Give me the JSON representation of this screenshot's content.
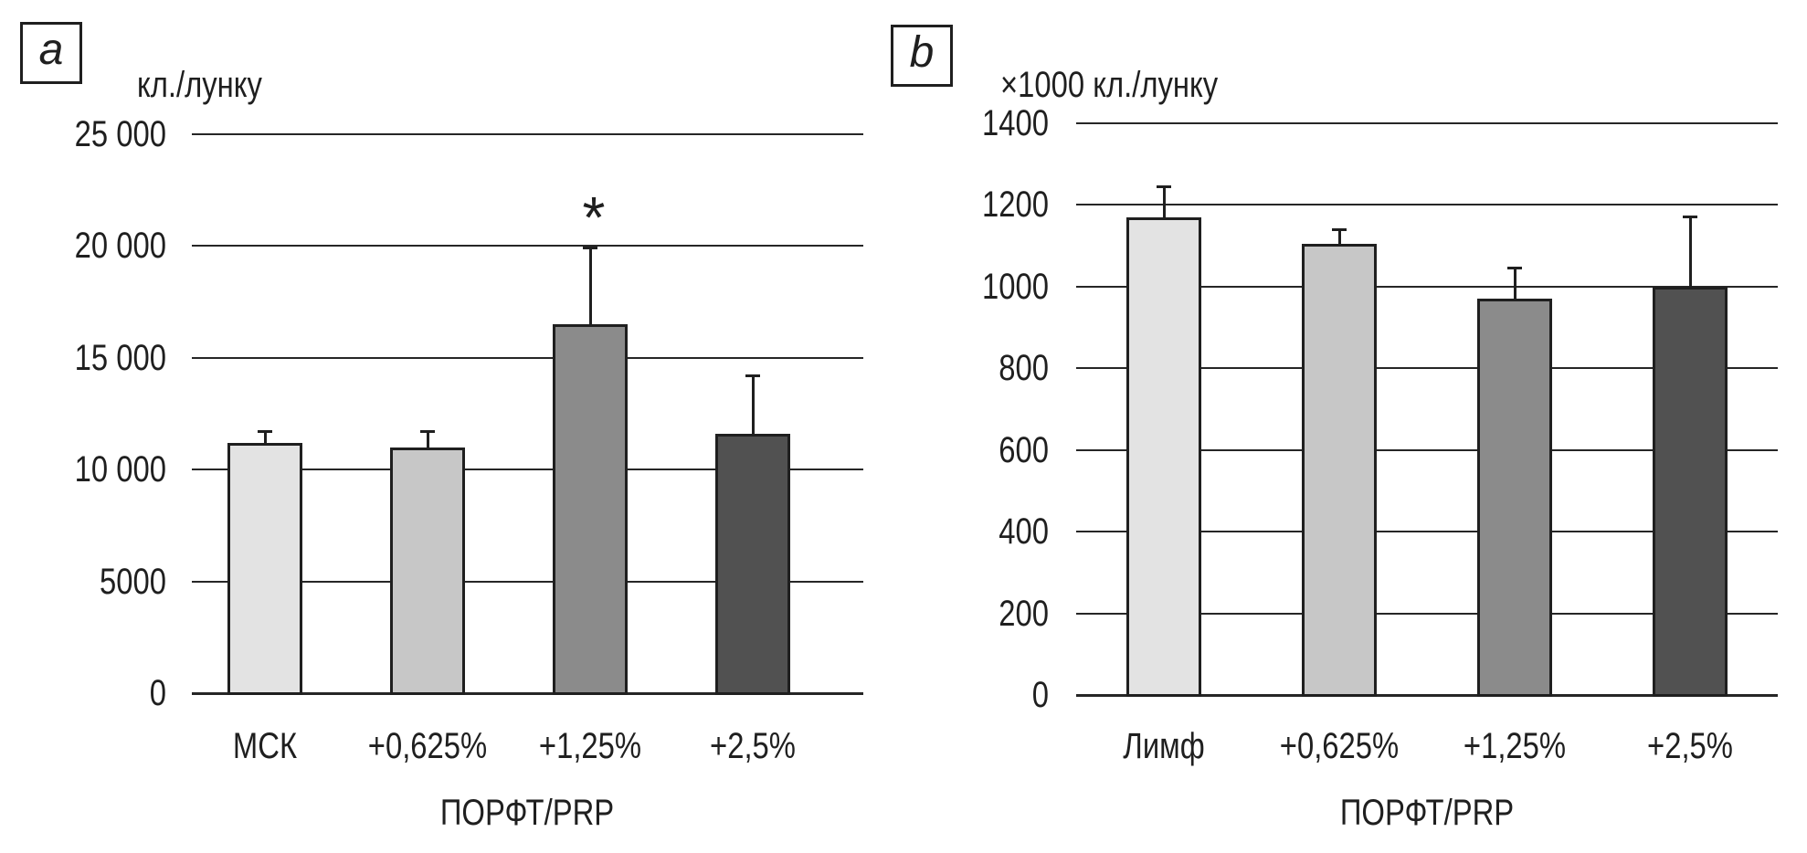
{
  "figure": {
    "background": "#ffffff",
    "ink_color": "#1f1f1f"
  },
  "chart_data": [
    {
      "type": "bar",
      "panel_label": "a",
      "title": "",
      "ylabel": "кл./лунку",
      "xlabel": "ПОРФТ/PRP",
      "categories": [
        "МСК",
        "+0,625%",
        "+1,25%",
        "+2,5%"
      ],
      "values": [
        11200,
        11000,
        16500,
        11600
      ],
      "error_plus": [
        500,
        700,
        3400,
        2600
      ],
      "ylim": [
        0,
        25000
      ],
      "ytick_values": [
        0,
        5000,
        10000,
        15000,
        20000,
        25000
      ],
      "ytick_labels": [
        "0",
        "5000",
        "10 000",
        "15 000",
        "20 000",
        "25 000"
      ],
      "bar_colors": [
        "#e3e3e3",
        "#c7c7c7",
        "#8b8b8b",
        "#515151"
      ],
      "grid": true,
      "legend": "none",
      "annotations": [
        {
          "text": "*",
          "category_index": 2,
          "y_value": 21900
        }
      ]
    },
    {
      "type": "bar",
      "panel_label": "b",
      "title": "",
      "ylabel": "×1000 кл./лунку",
      "xlabel": "ПОРФТ/PRP",
      "categories": [
        "Лимф",
        "+0,625%",
        "+1,25%",
        "+2,5%"
      ],
      "values": [
        1170,
        1105,
        970,
        1000
      ],
      "error_plus": [
        75,
        35,
        75,
        170
      ],
      "ylim": [
        0,
        1400
      ],
      "ytick_values": [
        0,
        200,
        400,
        600,
        800,
        1000,
        1200,
        1400
      ],
      "ytick_labels": [
        "0",
        "200",
        "400",
        "600",
        "800",
        "1000",
        "1200",
        "1400"
      ],
      "bar_colors": [
        "#e3e3e3",
        "#c7c7c7",
        "#8b8b8b",
        "#515151"
      ],
      "grid": true,
      "legend": "none",
      "annotations": []
    }
  ]
}
